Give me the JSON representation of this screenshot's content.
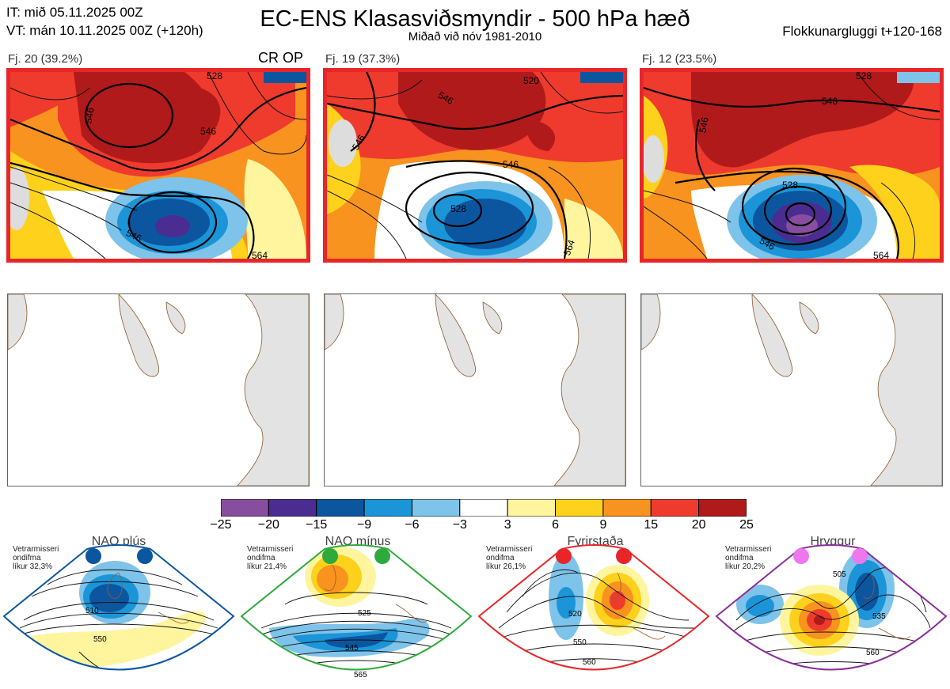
{
  "header": {
    "it_line": "IT: mið 05.11.2025 00Z",
    "vt_line": "VT: mán 10.11.2025 00Z  (+120h)",
    "title": "EC-ENS Klasasviðsmyndir - 500 hPa hæð",
    "subtitle": "Miðað við nóv 1981-2010",
    "window": "Flokkunargluggi t+120-168"
  },
  "clusters": [
    {
      "label": "Fj. 20 (39.2%)",
      "badge": "CR OP",
      "contours": [
        "528",
        "546",
        "546",
        "546",
        "564"
      ],
      "low_label": ""
    },
    {
      "label": "Fj. 19 (37.3%)",
      "badge": "",
      "contours": [
        "520",
        "546",
        "546",
        "546",
        "564"
      ],
      "low_label": "528"
    },
    {
      "label": "Fj. 12 (23.5%)",
      "badge": "",
      "contours": [
        "528",
        "546",
        "546",
        "546",
        "564"
      ],
      "low_label": "528"
    }
  ],
  "colorbar": {
    "ticks": [
      "−25",
      "−20",
      "−15",
      "−9",
      "−6",
      "−3",
      "3",
      "6",
      "9",
      "15",
      "20",
      "25"
    ],
    "colors": [
      "#874ea0",
      "#4b2c91",
      "#0c56a0",
      "#1b95d8",
      "#7ec3ea",
      "#ffffff",
      "#fff59e",
      "#fdd11c",
      "#f7931e",
      "#ee3b2d",
      "#b11a1a"
    ]
  },
  "regimes": [
    {
      "title": "NAO plús",
      "meta": [
        "Vetrarmisseri",
        "ondifma",
        "líkur 32,3%"
      ],
      "color": "#0c56a0",
      "contours": [
        "510",
        "550"
      ],
      "dot_color": "#0c56a0"
    },
    {
      "title": "NAO mínus",
      "meta": [
        "Vetrarmisseri",
        "ondifma",
        "líkur 21,4%"
      ],
      "color": "#2eaa3c",
      "contours": [
        "525",
        "545",
        "565"
      ],
      "dot_color": "#2eaa3c"
    },
    {
      "title": "Fyrirstaða",
      "meta": [
        "Vetrarmisseri",
        "ondifma",
        "líkur 26,1%"
      ],
      "color": "#e8262a",
      "contours": [
        "520",
        "550",
        "560"
      ],
      "dot_color": "#e8262a"
    },
    {
      "title": "Hryggur",
      "meta": [
        "Vetrarmisseri",
        "ondifma",
        "líkur 20,2%"
      ],
      "color": "#8a2f9a",
      "contours": [
        "505",
        "535",
        "560"
      ],
      "dot_color": "#ee77ee"
    }
  ]
}
